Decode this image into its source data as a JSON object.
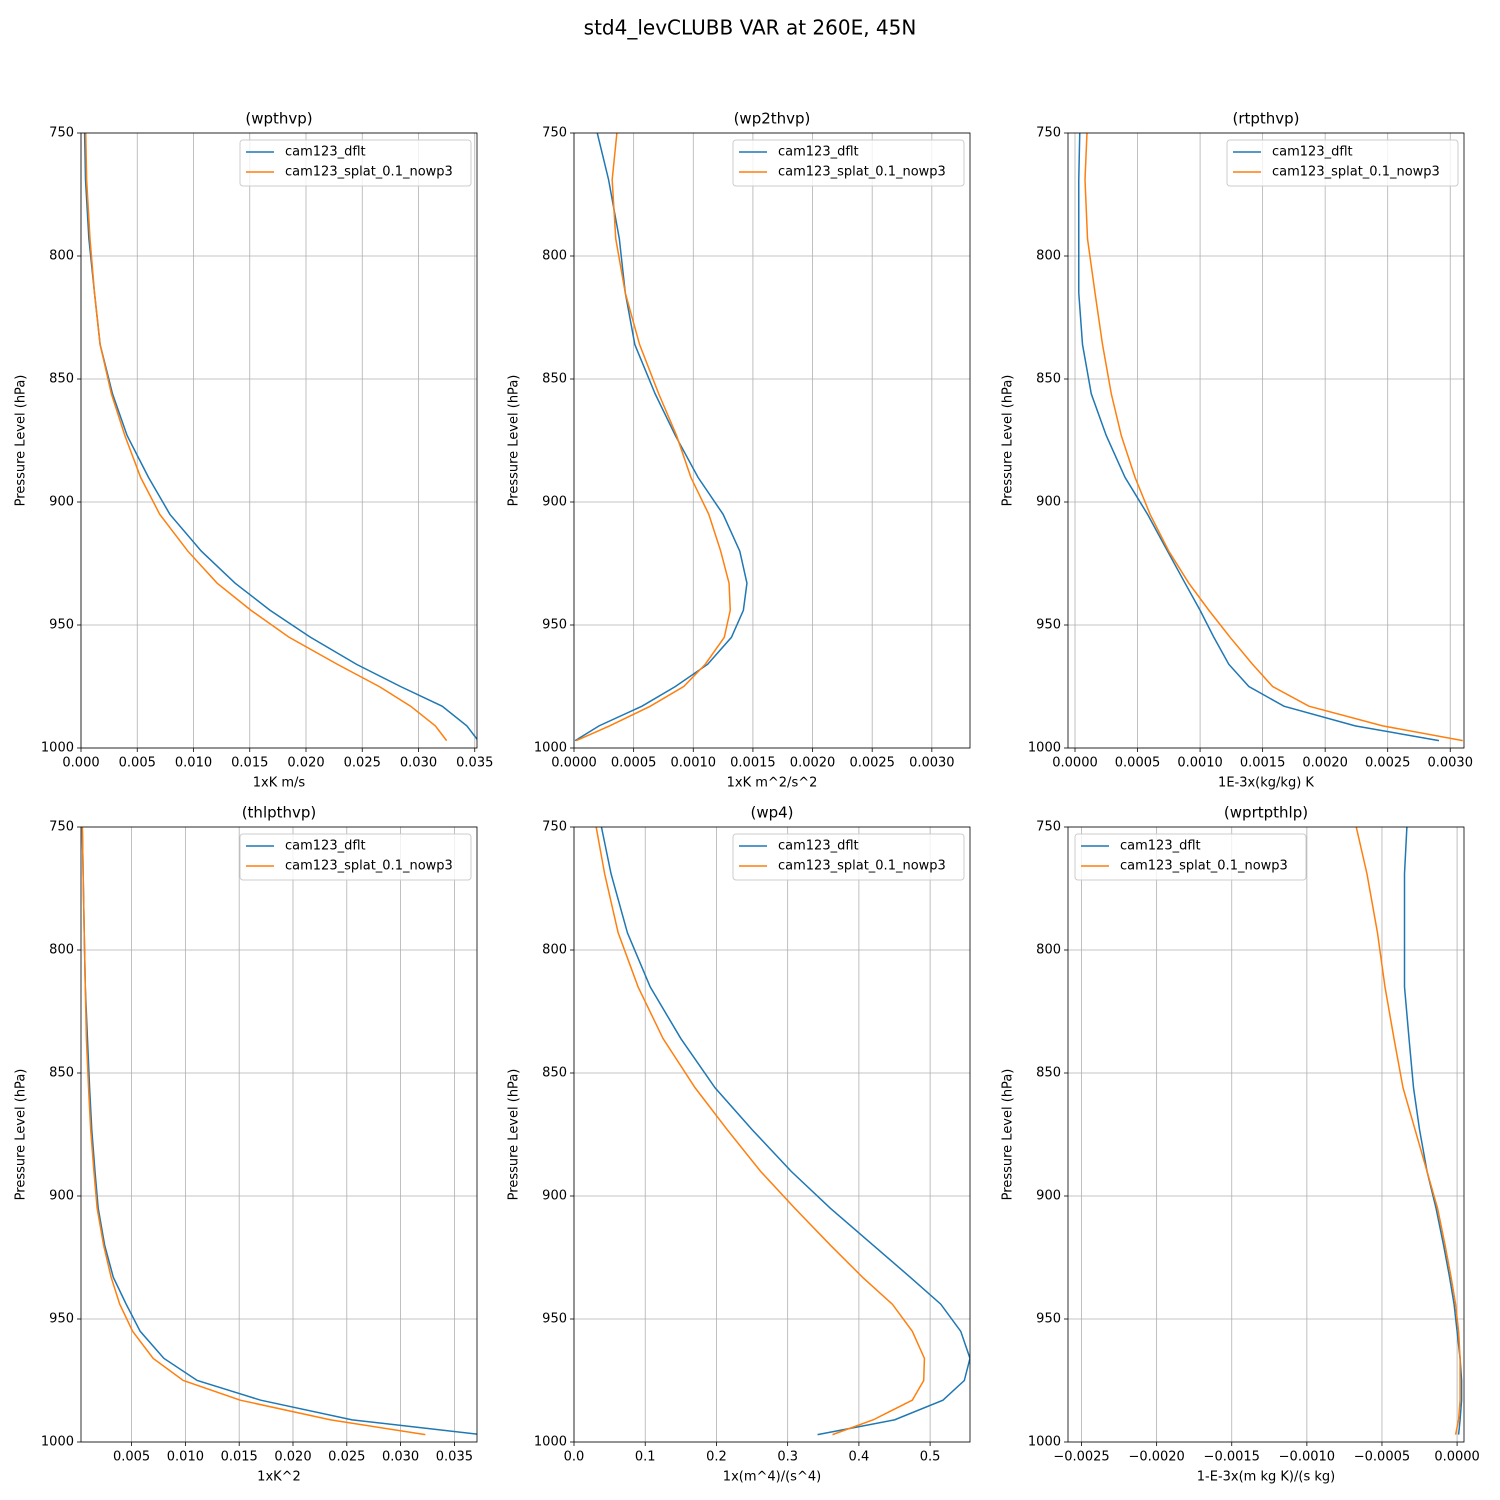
{
  "title": "std4_levCLUBB VAR at 260E, 45N",
  "chart_data": [
    {
      "type": "line",
      "title": "(wpthvp)",
      "xlabel": "1xK m/s",
      "ylabel": "Pressure Level (hPa)",
      "grid": true,
      "legend": "upper right",
      "xlim": [
        0,
        0.0352
      ],
      "xticks": [
        {
          "value": 0,
          "label": "0.000"
        },
        0.005,
        {
          "value": 0.01,
          "label": "0.010"
        },
        0.015,
        {
          "value": 0.02,
          "label": "0.020"
        },
        0.025,
        {
          "value": 0.03,
          "label": "0.030"
        },
        0.035
      ],
      "ylim": [
        1000,
        750
      ],
      "yticks": [
        750,
        800,
        850,
        900,
        950,
        1000
      ],
      "y": [
        745,
        769,
        793,
        815,
        836,
        856,
        873,
        890,
        905,
        920,
        933,
        944,
        955,
        966,
        975,
        983,
        991,
        997
      ],
      "series": [
        {
          "name": "cam123_dflt",
          "color": "#1f77b4",
          "values": [
            0.0003,
            0.0004,
            0.0007,
            0.0012,
            0.0017,
            0.0028,
            0.0041,
            0.006,
            0.0079,
            0.0107,
            0.0137,
            0.0168,
            0.0204,
            0.0245,
            0.0284,
            0.0321,
            0.0343,
            0.0353
          ]
        },
        {
          "name": "cam123_splat_0.1_nowp3",
          "color": "#ff7f0e",
          "values": [
            0.0004,
            0.0005,
            0.0008,
            0.0012,
            0.0017,
            0.0027,
            0.0039,
            0.0053,
            0.007,
            0.0095,
            0.0121,
            0.0151,
            0.0185,
            0.0228,
            0.0265,
            0.0293,
            0.0315,
            0.0325
          ]
        }
      ]
    },
    {
      "type": "line",
      "title": "(wp2thvp)",
      "xlabel": "1xK m^2/s^2",
      "ylabel": "Pressure Level (hPa)",
      "grid": true,
      "legend": "upper right",
      "xlim": [
        0,
        0.00332
      ],
      "xticks": [
        {
          "value": 0,
          "label": "0.0000"
        },
        0.0005,
        {
          "value": 0.001,
          "label": "0.0010"
        },
        0.0015,
        {
          "value": 0.002,
          "label": "0.0020"
        },
        0.0025,
        {
          "value": 0.003,
          "label": "0.0030"
        }
      ],
      "ylim": [
        1000,
        750
      ],
      "yticks": [
        750,
        800,
        850,
        900,
        950,
        1000
      ],
      "y": [
        745,
        769,
        793,
        815,
        836,
        856,
        873,
        890,
        905,
        920,
        933,
        944,
        955,
        966,
        975,
        983,
        991,
        997
      ],
      "series": [
        {
          "name": "cam123_dflt",
          "color": "#1f77b4",
          "values": [
            0.00017,
            0.00029,
            0.00038,
            0.00043,
            0.00051,
            0.00068,
            0.00085,
            0.00104,
            0.00125,
            0.00139,
            0.00145,
            0.00142,
            0.00132,
            0.00112,
            0.00085,
            0.00057,
            0.00021,
            1e-05
          ]
        },
        {
          "name": "cam123_splat_0.1_nowp3",
          "color": "#ff7f0e",
          "values": [
            0.00037,
            0.00032,
            0.00035,
            0.00043,
            0.00055,
            0.00071,
            0.00086,
            0.00098,
            0.00113,
            0.00123,
            0.0013,
            0.00131,
            0.00126,
            0.0011,
            0.00092,
            0.00064,
            0.0003,
            2e-05
          ]
        }
      ]
    },
    {
      "type": "line",
      "title": "(rtpthvp)",
      "xlabel": "1E-3x(kg/kg) K",
      "ylabel": "Pressure Level (hPa)",
      "grid": true,
      "legend": "upper right",
      "xlim": [
        -5.6e-05,
        0.00311
      ],
      "xticks": [
        {
          "value": 0,
          "label": "0.0000"
        },
        0.0005,
        {
          "value": 0.001,
          "label": "0.0010"
        },
        0.0015,
        {
          "value": 0.002,
          "label": "0.0020"
        },
        0.0025,
        {
          "value": 0.003,
          "label": "0.0030"
        }
      ],
      "ylim": [
        1000,
        750
      ],
      "yticks": [
        750,
        800,
        850,
        900,
        950,
        1000
      ],
      "y": [
        745,
        769,
        793,
        815,
        836,
        856,
        873,
        890,
        905,
        920,
        933,
        944,
        955,
        966,
        975,
        983,
        991,
        997
      ],
      "series": [
        {
          "name": "cam123_dflt",
          "color": "#1f77b4",
          "values": [
            4e-05,
            3e-05,
            3e-05,
            3e-05,
            6e-05,
            0.00013,
            0.00025,
            0.0004,
            0.00058,
            0.00074,
            0.00088,
            0.001,
            0.00111,
            0.00123,
            0.00139,
            0.00167,
            0.00224,
            0.00291
          ]
        },
        {
          "name": "cam123_splat_0.1_nowp3",
          "color": "#ff7f0e",
          "values": [
            0.0001,
            8e-05,
            0.0001,
            0.00016,
            0.00022,
            0.00029,
            0.00037,
            0.00048,
            0.0006,
            0.00075,
            0.00091,
            0.00107,
            0.00124,
            0.00142,
            0.00158,
            0.00187,
            0.00246,
            0.0031
          ]
        }
      ]
    },
    {
      "type": "line",
      "title": "(thlpthvp)",
      "xlabel": "1xK^2",
      "ylabel": "Pressure Level (hPa)",
      "grid": true,
      "legend": "upper right",
      "xlim": [
        0.0003,
        0.0371
      ],
      "xticks": [
        0.005,
        {
          "value": 0.01,
          "label": "0.010"
        },
        0.015,
        {
          "value": 0.02,
          "label": "0.020"
        },
        0.025,
        {
          "value": 0.03,
          "label": "0.030"
        },
        0.035
      ],
      "ylim": [
        1000,
        750
      ],
      "yticks": [
        750,
        800,
        850,
        900,
        950,
        1000
      ],
      "y": [
        745,
        769,
        793,
        815,
        836,
        856,
        873,
        890,
        905,
        920,
        933,
        944,
        955,
        966,
        975,
        983,
        991,
        997
      ],
      "series": [
        {
          "name": "cam123_dflt",
          "color": "#1f77b4",
          "values": [
            0.0004,
            0.0005,
            0.0006,
            0.0007,
            0.0009,
            0.0011,
            0.0013,
            0.0016,
            0.0019,
            0.0025,
            0.0033,
            0.0045,
            0.0058,
            0.008,
            0.0111,
            0.017,
            0.0255,
            0.0375
          ]
        },
        {
          "name": "cam123_splat_0.1_nowp3",
          "color": "#ff7f0e",
          "values": [
            0.0004,
            0.0005,
            0.0006,
            0.0007,
            0.0008,
            0.001,
            0.0012,
            0.0015,
            0.0018,
            0.0024,
            0.0031,
            0.0039,
            0.0051,
            0.007,
            0.0098,
            0.0151,
            0.0235,
            0.0323
          ]
        }
      ]
    },
    {
      "type": "line",
      "title": "(wp4)",
      "xlabel": "1x(m^4)/(s^4)",
      "ylabel": "Pressure Level (hPa)",
      "grid": true,
      "legend": "upper right",
      "xlim": [
        0,
        0.556
      ],
      "xticks": [
        {
          "value": 0,
          "label": "0.0"
        },
        0.1,
        0.2,
        0.3,
        0.4,
        0.5
      ],
      "ylim": [
        1000,
        750
      ],
      "yticks": [
        750,
        800,
        850,
        900,
        950,
        1000
      ],
      "y": [
        745,
        769,
        793,
        815,
        836,
        856,
        873,
        890,
        905,
        920,
        933,
        944,
        955,
        966,
        975,
        983,
        991,
        997
      ],
      "series": [
        {
          "name": "cam123_dflt",
          "color": "#1f77b4",
          "values": [
            0.035,
            0.052,
            0.075,
            0.107,
            0.15,
            0.198,
            0.25,
            0.305,
            0.36,
            0.42,
            0.472,
            0.515,
            0.543,
            0.556,
            0.548,
            0.518,
            0.45,
            0.342
          ]
        },
        {
          "name": "cam123_splat_0.1_nowp3",
          "color": "#ff7f0e",
          "values": [
            0.028,
            0.043,
            0.062,
            0.09,
            0.125,
            0.17,
            0.215,
            0.262,
            0.31,
            0.36,
            0.405,
            0.447,
            0.475,
            0.492,
            0.491,
            0.475,
            0.42,
            0.363
          ]
        }
      ]
    },
    {
      "type": "line",
      "title": "(wprtpthlp)",
      "xlabel": "1-E-3x(m kg K)/(s kg)",
      "ylabel": "Pressure Level (hPa)",
      "grid": true,
      "legend": "upper left",
      "xlim": [
        -0.00259,
        4.6e-05
      ],
      "xticks": [
        {
          "value": -0.0025,
          "label": "−0.0025"
        },
        {
          "value": -0.002,
          "label": "−0.0020"
        },
        {
          "value": -0.0015,
          "label": "−0.0015"
        },
        {
          "value": -0.001,
          "label": "−0.0010"
        },
        {
          "value": -0.0005,
          "label": "−0.0005"
        },
        {
          "value": 0,
          "label": "0.0000"
        }
      ],
      "ylim": [
        1000,
        750
      ],
      "yticks": [
        750,
        800,
        850,
        900,
        950,
        1000
      ],
      "y": [
        745,
        769,
        793,
        815,
        836,
        856,
        873,
        890,
        905,
        920,
        933,
        944,
        955,
        966,
        975,
        983,
        991,
        997
      ],
      "series": [
        {
          "name": "cam123_dflt",
          "color": "#1f77b4",
          "values": [
            -0.00033,
            -0.00035,
            -0.00035,
            -0.00035,
            -0.00032,
            -0.00029,
            -0.00025,
            -0.0002,
            -0.00014,
            -9e-05,
            -5e-05,
            -2e-05,
            0,
            2e-05,
            3e-05,
            3e-05,
            2e-05,
            1e-05
          ]
        },
        {
          "name": "cam123_splat_0.1_nowp3",
          "color": "#ff7f0e",
          "values": [
            -0.00069,
            -0.0006,
            -0.00053,
            -0.00048,
            -0.00042,
            -0.00036,
            -0.00028,
            -0.0002,
            -0.00013,
            -8e-05,
            -4e-05,
            -1e-05,
            1e-05,
            2e-05,
            2e-05,
            2e-05,
            1e-05,
            -1e-05
          ]
        }
      ]
    }
  ]
}
